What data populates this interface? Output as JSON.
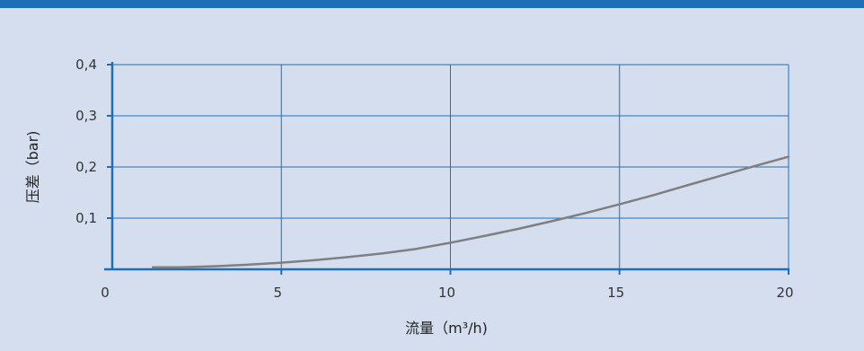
{
  "chart_data": {
    "type": "line",
    "title": "",
    "xlabel": "流量（m³/h)",
    "ylabel": "压差（bar)",
    "xlim": [
      0,
      20
    ],
    "ylim": [
      0,
      0.4
    ],
    "x_ticks": [
      {
        "value": 0,
        "label": "0"
      },
      {
        "value": 5,
        "label": "5"
      },
      {
        "value": 10,
        "label": "10"
      },
      {
        "value": 15,
        "label": "15"
      },
      {
        "value": 20,
        "label": "20"
      }
    ],
    "y_ticks": [
      {
        "value": 0.1,
        "label": "0,1"
      },
      {
        "value": 0.2,
        "label": "0,2"
      },
      {
        "value": 0.3,
        "label": "0,3"
      },
      {
        "value": 0.4,
        "label": "0,4"
      }
    ],
    "grid": true,
    "series": [
      {
        "x": [
          1.2,
          2,
          3,
          4,
          5,
          6,
          7,
          8,
          9,
          10,
          11,
          12,
          13,
          14,
          15,
          16,
          17,
          18,
          19,
          20
        ],
        "y": [
          0.004,
          0.004,
          0.006,
          0.009,
          0.013,
          0.018,
          0.024,
          0.031,
          0.04,
          0.052,
          0.065,
          0.079,
          0.094,
          0.11,
          0.127,
          0.145,
          0.164,
          0.183,
          0.202,
          0.22
        ]
      }
    ],
    "colors": {
      "grid": "#1f6fb7",
      "axis": "#1f6fb7",
      "curve": "#7f7f7f",
      "background": "#d5deef",
      "top_bar": "#1f6fb7"
    }
  }
}
